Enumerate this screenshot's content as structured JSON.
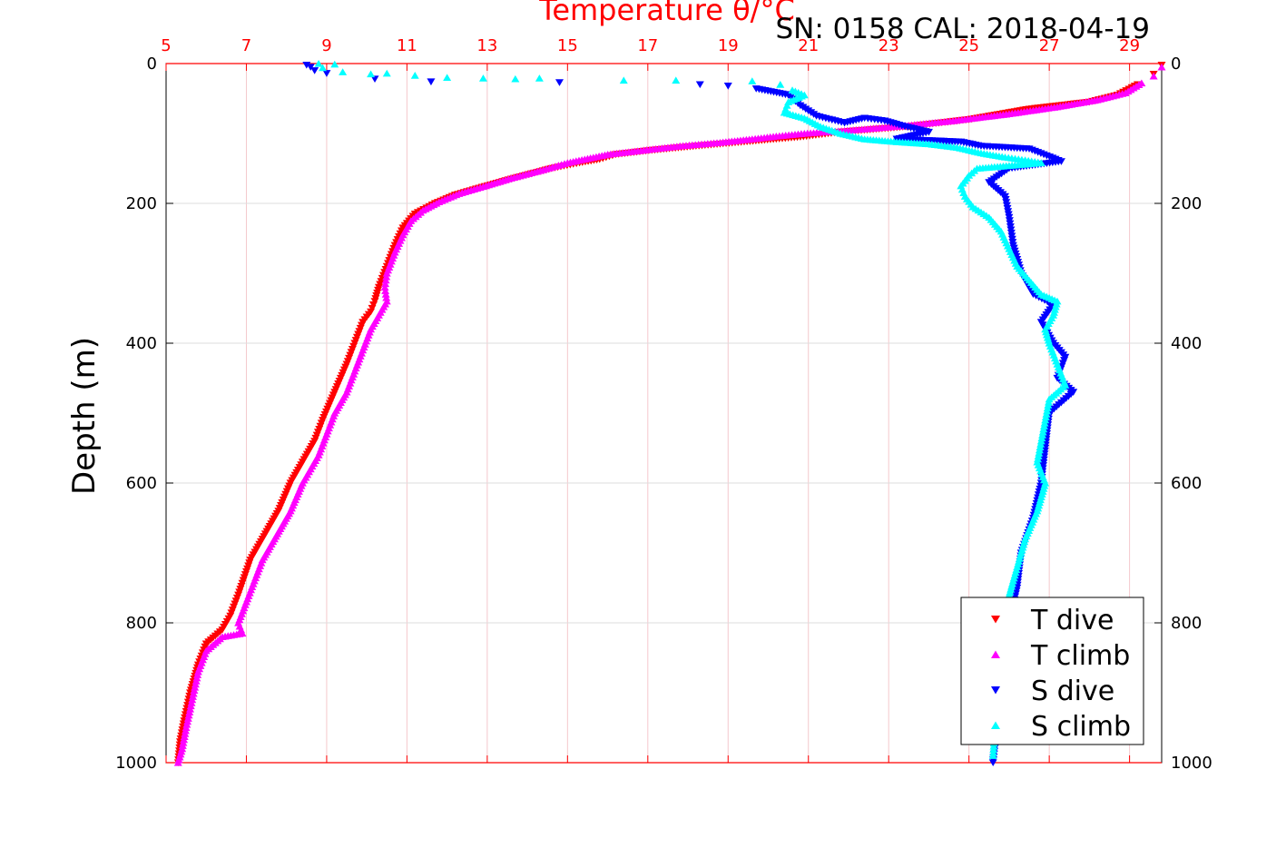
{
  "chart_data": {
    "type": "scatter",
    "title": "Temperature θ/°C",
    "subtitle": "SN: 0158  CAL: 2018-04-19",
    "ylabel": "Depth (m)",
    "xlim": [
      5,
      29.8
    ],
    "ylim": [
      0,
      1000
    ],
    "y_reversed": true,
    "x_ticks": [
      5,
      7,
      9,
      11,
      13,
      15,
      17,
      19,
      21,
      23,
      25,
      27,
      29
    ],
    "y_ticks": [
      0,
      200,
      400,
      600,
      800,
      1000
    ],
    "grid": true,
    "legend_position": "bottom-right",
    "series": [
      {
        "name": "T dive",
        "color": "#ff0000",
        "marker": "triangle-down",
        "points": [
          [
            29.8,
            2
          ],
          [
            29.6,
            15
          ],
          [
            29.2,
            30
          ],
          [
            28.7,
            45
          ],
          [
            28.0,
            55
          ],
          [
            26.5,
            65
          ],
          [
            25.0,
            80
          ],
          [
            23.5,
            90
          ],
          [
            21.8,
            98
          ],
          [
            20.8,
            105
          ],
          [
            20.2,
            108
          ],
          [
            19.4,
            112
          ],
          [
            18.2,
            118
          ],
          [
            17.1,
            124
          ],
          [
            16.2,
            130
          ],
          [
            15.8,
            137
          ],
          [
            15.3,
            142
          ],
          [
            14.6,
            150
          ],
          [
            13.6,
            165
          ],
          [
            12.8,
            178
          ],
          [
            12.2,
            188
          ],
          [
            11.7,
            200
          ],
          [
            11.2,
            215
          ],
          [
            10.9,
            235
          ],
          [
            10.7,
            260
          ],
          [
            10.5,
            290
          ],
          [
            10.3,
            320
          ],
          [
            10.2,
            340
          ],
          [
            10.1,
            355
          ],
          [
            9.9,
            370
          ],
          [
            9.7,
            400
          ],
          [
            9.5,
            430
          ],
          [
            9.2,
            470
          ],
          [
            8.9,
            510
          ],
          [
            8.7,
            540
          ],
          [
            8.4,
            570
          ],
          [
            8.1,
            600
          ],
          [
            7.8,
            640
          ],
          [
            7.4,
            680
          ],
          [
            7.1,
            710
          ],
          [
            6.8,
            760
          ],
          [
            6.6,
            790
          ],
          [
            6.4,
            810
          ],
          [
            6.0,
            830
          ],
          [
            5.8,
            860
          ],
          [
            5.6,
            900
          ],
          [
            5.45,
            940
          ],
          [
            5.35,
            970
          ],
          [
            5.3,
            1000
          ]
        ]
      },
      {
        "name": "T climb",
        "color": "#ff00ff",
        "marker": "triangle-up",
        "points": [
          [
            29.8,
            5
          ],
          [
            29.6,
            18
          ],
          [
            29.3,
            28
          ],
          [
            28.9,
            42
          ],
          [
            28.2,
            52
          ],
          [
            27.2,
            62
          ],
          [
            26.0,
            72
          ],
          [
            24.6,
            82
          ],
          [
            23.2,
            90
          ],
          [
            21.9,
            96
          ],
          [
            20.9,
            100
          ],
          [
            20.2,
            104
          ],
          [
            19.6,
            108
          ],
          [
            18.8,
            113
          ],
          [
            17.8,
            118
          ],
          [
            16.9,
            124
          ],
          [
            16.0,
            130
          ],
          [
            15.5,
            136
          ],
          [
            15.0,
            142
          ],
          [
            14.4,
            152
          ],
          [
            13.6,
            164
          ],
          [
            12.9,
            176
          ],
          [
            12.3,
            186
          ],
          [
            11.8,
            198
          ],
          [
            11.4,
            210
          ],
          [
            11.1,
            225
          ],
          [
            10.9,
            245
          ],
          [
            10.7,
            270
          ],
          [
            10.5,
            300
          ],
          [
            10.45,
            320
          ],
          [
            10.5,
            340
          ],
          [
            10.3,
            360
          ],
          [
            10.1,
            380
          ],
          [
            9.9,
            410
          ],
          [
            9.7,
            440
          ],
          [
            9.5,
            470
          ],
          [
            9.2,
            500
          ],
          [
            9.0,
            530
          ],
          [
            8.8,
            560
          ],
          [
            8.6,
            580
          ],
          [
            8.4,
            600
          ],
          [
            8.1,
            640
          ],
          [
            7.7,
            680
          ],
          [
            7.4,
            710
          ],
          [
            7.2,
            740
          ],
          [
            7.0,
            770
          ],
          [
            6.8,
            800
          ],
          [
            6.9,
            815
          ],
          [
            6.4,
            820
          ],
          [
            6.0,
            840
          ],
          [
            5.8,
            870
          ],
          [
            5.65,
            910
          ],
          [
            5.5,
            950
          ],
          [
            5.4,
            980
          ],
          [
            5.3,
            1000
          ]
        ]
      },
      {
        "name": "S dive",
        "color": "#0000ff",
        "marker": "triangle-down",
        "points": [
          [
            8.5,
            2
          ],
          [
            8.6,
            5
          ],
          [
            8.7,
            10
          ],
          [
            9.0,
            14
          ],
          [
            10.2,
            22
          ],
          [
            11.6,
            26
          ],
          [
            14.8,
            27
          ],
          [
            18.3,
            30
          ],
          [
            19.0,
            32
          ],
          [
            19.7,
            36
          ],
          [
            20.5,
            45
          ],
          [
            20.8,
            60
          ],
          [
            21.2,
            75
          ],
          [
            21.9,
            85
          ],
          [
            22.4,
            78
          ],
          [
            22.9,
            82
          ],
          [
            23.4,
            90
          ],
          [
            24.0,
            98
          ],
          [
            23.2,
            108
          ],
          [
            24.8,
            112
          ],
          [
            25.3,
            118
          ],
          [
            25.9,
            120
          ],
          [
            26.5,
            122
          ],
          [
            27.3,
            140
          ],
          [
            26.0,
            150
          ],
          [
            25.5,
            170
          ],
          [
            25.9,
            190
          ],
          [
            26.0,
            220
          ],
          [
            26.1,
            260
          ],
          [
            26.3,
            300
          ],
          [
            26.6,
            330
          ],
          [
            27.1,
            345
          ],
          [
            26.8,
            370
          ],
          [
            27.1,
            400
          ],
          [
            27.4,
            420
          ],
          [
            27.2,
            450
          ],
          [
            27.6,
            470
          ],
          [
            27.0,
            500
          ],
          [
            26.9,
            550
          ],
          [
            26.8,
            600
          ],
          [
            26.6,
            650
          ],
          [
            26.3,
            700
          ],
          [
            26.2,
            750
          ],
          [
            26.0,
            800
          ],
          [
            25.9,
            850
          ],
          [
            25.8,
            900
          ],
          [
            25.7,
            950
          ],
          [
            25.6,
            1000
          ]
        ]
      },
      {
        "name": "S climb",
        "color": "#00ffff",
        "marker": "triangle-up",
        "points": [
          [
            8.8,
            0
          ],
          [
            9.2,
            1
          ],
          [
            8.9,
            6
          ],
          [
            9.4,
            12
          ],
          [
            10.1,
            15
          ],
          [
            10.5,
            14
          ],
          [
            11.2,
            17
          ],
          [
            12.0,
            20
          ],
          [
            12.9,
            21
          ],
          [
            13.7,
            22
          ],
          [
            14.3,
            21
          ],
          [
            16.4,
            24
          ],
          [
            17.7,
            24
          ],
          [
            19.6,
            25
          ],
          [
            20.3,
            30
          ],
          [
            20.6,
            38
          ],
          [
            20.9,
            45
          ],
          [
            20.5,
            55
          ],
          [
            20.4,
            70
          ],
          [
            20.9,
            78
          ],
          [
            21.3,
            90
          ],
          [
            21.8,
            100
          ],
          [
            22.4,
            108
          ],
          [
            23.2,
            112
          ],
          [
            24.0,
            115
          ],
          [
            24.7,
            120
          ],
          [
            25.3,
            128
          ],
          [
            25.9,
            134
          ],
          [
            26.4,
            138
          ],
          [
            26.8,
            142
          ],
          [
            25.2,
            150
          ],
          [
            25.0,
            160
          ],
          [
            24.8,
            175
          ],
          [
            24.9,
            190
          ],
          [
            25.1,
            205
          ],
          [
            25.5,
            220
          ],
          [
            25.8,
            240
          ],
          [
            26.0,
            265
          ],
          [
            26.2,
            290
          ],
          [
            26.5,
            310
          ],
          [
            26.8,
            330
          ],
          [
            27.2,
            340
          ],
          [
            27.1,
            360
          ],
          [
            26.9,
            380
          ],
          [
            27.0,
            400
          ],
          [
            27.2,
            430
          ],
          [
            27.4,
            460
          ],
          [
            27.0,
            480
          ],
          [
            26.9,
            510
          ],
          [
            26.8,
            540
          ],
          [
            26.7,
            570
          ],
          [
            26.9,
            600
          ],
          [
            26.7,
            640
          ],
          [
            26.4,
            680
          ],
          [
            26.2,
            720
          ],
          [
            26.0,
            760
          ],
          [
            25.9,
            800
          ],
          [
            25.8,
            850
          ],
          [
            25.7,
            900
          ],
          [
            25.65,
            950
          ],
          [
            25.6,
            990
          ]
        ]
      }
    ]
  }
}
